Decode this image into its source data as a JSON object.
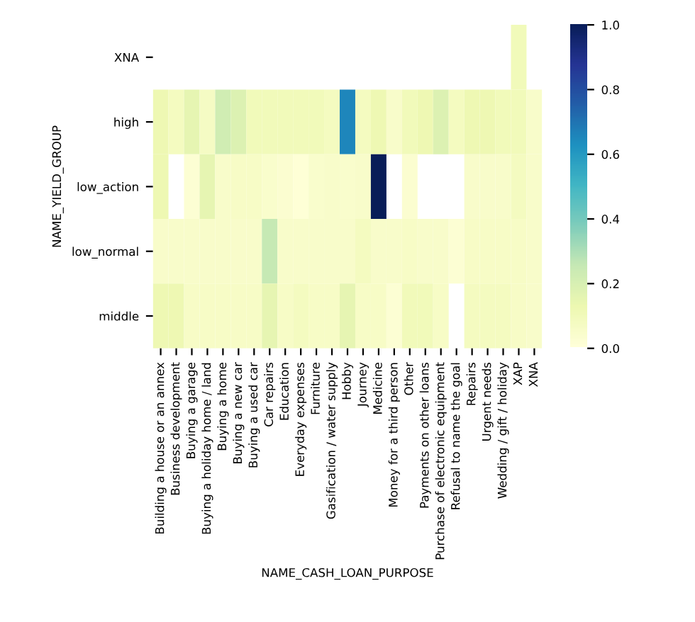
{
  "chart_data": {
    "type": "heatmap",
    "xlabel": "NAME_CASH_LOAN_PURPOSE",
    "ylabel": "NAME_YIELD_GROUP",
    "categories": [
      "Building a house or an annex",
      "Business development",
      "Buying a garage",
      "Buying a holiday home / land",
      "Buying a home",
      "Buying a new car",
      "Buying a used car",
      "Car repairs",
      "Education",
      "Everyday expenses",
      "Furniture",
      "Gasification / water supply",
      "Hobby",
      "Journey",
      "Medicine",
      "Money for a third person",
      "Other",
      "Payments on other loans",
      "Purchase of electronic equipment",
      "Refusal to name the goal",
      "Repairs",
      "Urgent needs",
      "Wedding / gift / holiday",
      "XAP",
      "XNA"
    ],
    "y_categories": [
      "XNA",
      "high",
      "low_action",
      "low_normal",
      "middle"
    ],
    "cells": [
      [
        null,
        null,
        null,
        null,
        null,
        null,
        null,
        null,
        null,
        null,
        null,
        null,
        null,
        null,
        null,
        null,
        null,
        null,
        null,
        null,
        null,
        null,
        null,
        0.1,
        null
      ],
      [
        0.12,
        0.08,
        0.15,
        0.07,
        0.22,
        0.18,
        0.1,
        0.1,
        0.1,
        0.1,
        0.1,
        0.08,
        0.65,
        0.08,
        0.12,
        0.05,
        0.1,
        0.12,
        0.18,
        0.08,
        0.12,
        0.12,
        0.1,
        0.1,
        0.05
      ],
      [
        0.12,
        null,
        0.02,
        0.15,
        0.05,
        0.06,
        0.06,
        0.04,
        0.03,
        0.01,
        0.04,
        0.05,
        0.04,
        0.05,
        1.0,
        null,
        0.03,
        null,
        null,
        null,
        0.05,
        0.05,
        0.05,
        0.08,
        0.05
      ],
      [
        0.05,
        0.05,
        0.05,
        0.05,
        0.05,
        0.05,
        0.05,
        0.25,
        0.05,
        0.05,
        0.05,
        0.05,
        0.05,
        0.08,
        0.05,
        0.05,
        0.06,
        0.05,
        0.05,
        0.02,
        0.06,
        0.06,
        0.06,
        0.06,
        0.05
      ],
      [
        0.12,
        0.12,
        0.06,
        0.06,
        0.06,
        0.06,
        0.06,
        0.15,
        0.06,
        0.08,
        0.06,
        0.06,
        0.15,
        0.06,
        0.06,
        0.02,
        0.1,
        0.1,
        0.06,
        null,
        0.08,
        0.08,
        0.08,
        0.06,
        0.05
      ]
    ],
    "clim": [
      0.0,
      1.0
    ],
    "cticks": [
      {
        "value": 0.0,
        "label": "0.0"
      },
      {
        "value": 0.2,
        "label": "0.2"
      },
      {
        "value": 0.4,
        "label": "0.4"
      },
      {
        "value": 0.6,
        "label": "0.6"
      },
      {
        "value": 0.8,
        "label": "0.8"
      },
      {
        "value": 1.0,
        "label": "1.0"
      }
    ]
  }
}
